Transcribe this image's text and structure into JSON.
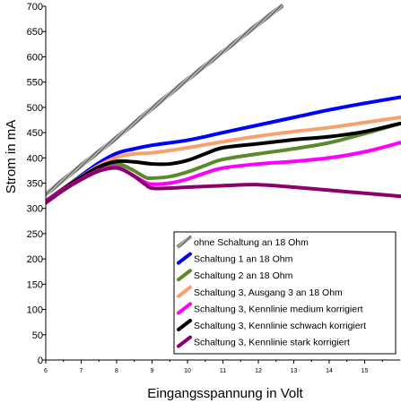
{
  "chart_data": {
    "type": "line",
    "xlabel": "Eingangsspannung in Volt",
    "ylabel": "Strom in mA",
    "xlim": [
      6,
      16
    ],
    "ylim": [
      0,
      700
    ],
    "x_ticks": [
      "6",
      "7",
      "8",
      "9",
      "10",
      "11",
      "12",
      "13",
      "14",
      "15"
    ],
    "y_ticks": [
      "0",
      "50",
      "100",
      "150",
      "200",
      "250",
      "300",
      "350",
      "400",
      "450",
      "500",
      "550",
      "600",
      "650",
      "700"
    ],
    "grid": false,
    "legend_position": "bottom-right",
    "series": [
      {
        "name": "ohne Schaltung an 18 Ohm",
        "color": "#999999",
        "style": "hatched",
        "points": [
          [
            6,
            328
          ],
          [
            7,
            385
          ],
          [
            8,
            440
          ],
          [
            9,
            498
          ],
          [
            10,
            555
          ],
          [
            11,
            610
          ],
          [
            12,
            665
          ],
          [
            12.65,
            700
          ]
        ]
      },
      {
        "name": "Schaltung 1 an 18 Ohm",
        "color": "#0000ff",
        "style": "solid",
        "points": [
          [
            6,
            315
          ],
          [
            6.5,
            340
          ],
          [
            7,
            365
          ],
          [
            7.5,
            390
          ],
          [
            8,
            409
          ],
          [
            8.5,
            418
          ],
          [
            9,
            425
          ],
          [
            10,
            435
          ],
          [
            11,
            450
          ],
          [
            12,
            465
          ],
          [
            13,
            480
          ],
          [
            14,
            495
          ],
          [
            15,
            508
          ],
          [
            16,
            520
          ]
        ]
      },
      {
        "name": "Schaltung 2 an 18 Ohm",
        "color": "#5a8a2a",
        "style": "solid",
        "points": [
          [
            6,
            312
          ],
          [
            6.5,
            338
          ],
          [
            7,
            360
          ],
          [
            7.5,
            378
          ],
          [
            8,
            388
          ],
          [
            8.4,
            378
          ],
          [
            8.8,
            362
          ],
          [
            9,
            360
          ],
          [
            9.5,
            363
          ],
          [
            10,
            372
          ],
          [
            10.5,
            385
          ],
          [
            11,
            397
          ],
          [
            12,
            408
          ],
          [
            13,
            418
          ],
          [
            14,
            430
          ],
          [
            15,
            448
          ],
          [
            16,
            468
          ]
        ]
      },
      {
        "name": "Schaltung 3, Ausgang 3 an 18 Ohm",
        "color": "#f8a070",
        "style": "solid",
        "points": [
          [
            6,
            314
          ],
          [
            6.5,
            340
          ],
          [
            7,
            363
          ],
          [
            7.5,
            385
          ],
          [
            8,
            401
          ],
          [
            8.5,
            408
          ],
          [
            9,
            410
          ],
          [
            10,
            420
          ],
          [
            11,
            432
          ],
          [
            12,
            443
          ],
          [
            13,
            452
          ],
          [
            14,
            460
          ],
          [
            15,
            470
          ],
          [
            16,
            480
          ]
        ]
      },
      {
        "name": "Schaltung 3,  Kennlinie medium korrigiert",
        "color": "#ff00ff",
        "style": "solid",
        "points": [
          [
            6,
            312
          ],
          [
            6.5,
            337
          ],
          [
            7,
            358
          ],
          [
            7.5,
            375
          ],
          [
            8,
            382
          ],
          [
            8.4,
            368
          ],
          [
            8.8,
            352
          ],
          [
            9,
            348
          ],
          [
            9.5,
            350
          ],
          [
            10,
            358
          ],
          [
            10.5,
            370
          ],
          [
            11,
            380
          ],
          [
            12,
            388
          ],
          [
            13,
            393
          ],
          [
            14,
            400
          ],
          [
            15,
            412
          ],
          [
            16,
            430
          ]
        ]
      },
      {
        "name": "Schaltung 3,  Kennlinie schwach korrigiert",
        "color": "#000000",
        "style": "solid",
        "points": [
          [
            6,
            313
          ],
          [
            6.5,
            339
          ],
          [
            7,
            362
          ],
          [
            7.5,
            382
          ],
          [
            8,
            393
          ],
          [
            8.5,
            392
          ],
          [
            9,
            388
          ],
          [
            9.5,
            388
          ],
          [
            10,
            395
          ],
          [
            10.5,
            408
          ],
          [
            11,
            420
          ],
          [
            12,
            428
          ],
          [
            13,
            436
          ],
          [
            14,
            442
          ],
          [
            15,
            452
          ],
          [
            16,
            468
          ]
        ]
      },
      {
        "name": "Schaltung 3,  Kennlinie stark korrigiert",
        "color": "#8b006b",
        "style": "solid",
        "points": [
          [
            6,
            311
          ],
          [
            6.5,
            336
          ],
          [
            7,
            357
          ],
          [
            7.5,
            374
          ],
          [
            8,
            380
          ],
          [
            8.4,
            368
          ],
          [
            8.8,
            348
          ],
          [
            9,
            340
          ],
          [
            9.5,
            340
          ],
          [
            10,
            342
          ],
          [
            11,
            345
          ],
          [
            12,
            347
          ],
          [
            13,
            342
          ],
          [
            14,
            336
          ],
          [
            15,
            330
          ],
          [
            16,
            324
          ]
        ]
      }
    ]
  }
}
